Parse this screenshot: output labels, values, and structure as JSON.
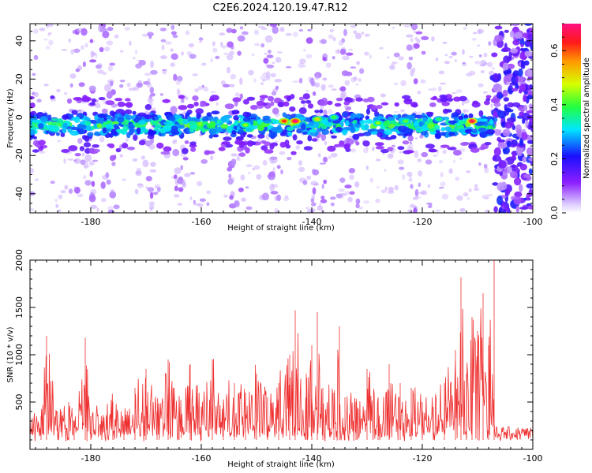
{
  "title": "C2E6.2024.120.19.47.R12",
  "chart_data": [
    {
      "type": "heatmap",
      "xlabel": "Height of straight line (km)",
      "ylabel": "Frequency (Hz)",
      "xlim": [
        -191,
        -100
      ],
      "ylim": [
        -50,
        49
      ],
      "xticks": [
        -180,
        -160,
        -140,
        -120,
        -100
      ],
      "yticks": [
        -40,
        -20,
        0,
        20,
        40
      ],
      "colorbar": {
        "label": "Normalized spectral amplitude",
        "range": [
          0,
          0.7
        ],
        "ticks": [
          0.0,
          0.2,
          0.4,
          0.6
        ]
      },
      "band_center_hz": -4,
      "band_halfwidth_hz": 9,
      "cutoff_height_km": -107,
      "hot_spots": [
        {
          "x": -152,
          "y": -4,
          "amplitude": 0.45
        },
        {
          "x": -145,
          "y": -2,
          "amplitude": 0.62
        },
        {
          "x": -143,
          "y": -2,
          "amplitude": 0.7
        },
        {
          "x": -139,
          "y": -1,
          "amplitude": 0.5
        },
        {
          "x": -136,
          "y": 0,
          "amplitude": 0.4
        },
        {
          "x": -128,
          "y": -3,
          "amplitude": 0.45
        },
        {
          "x": -123,
          "y": -2,
          "amplitude": 0.42
        },
        {
          "x": -117,
          "y": -1,
          "amplitude": 0.38
        },
        {
          "x": -111,
          "y": -2,
          "amplitude": 0.68
        }
      ]
    },
    {
      "type": "line",
      "xlabel": "Height of straight line (km)",
      "ylabel": "SNR (10 * v/v)",
      "xlim": [
        -191,
        -100
      ],
      "ylim": [
        0,
        2000
      ],
      "xticks": [
        -180,
        -160,
        -140,
        -120,
        -100
      ],
      "yticks": [
        500,
        1000,
        1500,
        2000
      ],
      "line_color": "#ee3030",
      "series": [
        {
          "x": [
            -191,
            -189,
            -188,
            -186,
            -184,
            -183,
            -181,
            -180,
            -178,
            -176,
            -174,
            -172,
            -170,
            -168,
            -166,
            -164,
            -162,
            -160,
            -158,
            -156,
            -154,
            -152,
            -150,
            -148,
            -146,
            -144,
            -143,
            -141,
            -140,
            -139,
            -138,
            -136,
            -135,
            -134,
            -132,
            -130,
            -128,
            -126,
            -124,
            -122,
            -120,
            -118,
            -116,
            -114,
            -113,
            -112,
            -111,
            -110,
            -109,
            -108,
            -107,
            -106,
            -104,
            -102,
            -100
          ],
          "values": [
            300,
            350,
            1200,
            400,
            500,
            300,
            1180,
            350,
            300,
            500,
            300,
            650,
            850,
            400,
            950,
            500,
            900,
            450,
            950,
            500,
            700,
            600,
            800,
            550,
            700,
            1000,
            1470,
            800,
            1100,
            1450,
            650,
            600,
            1300,
            550,
            500,
            850,
            550,
            900,
            700,
            650,
            500,
            450,
            700,
            1050,
            1820,
            800,
            1400,
            1250,
            1650,
            1100,
            2000,
            180,
            150,
            180,
            150
          ]
        }
      ]
    }
  ]
}
